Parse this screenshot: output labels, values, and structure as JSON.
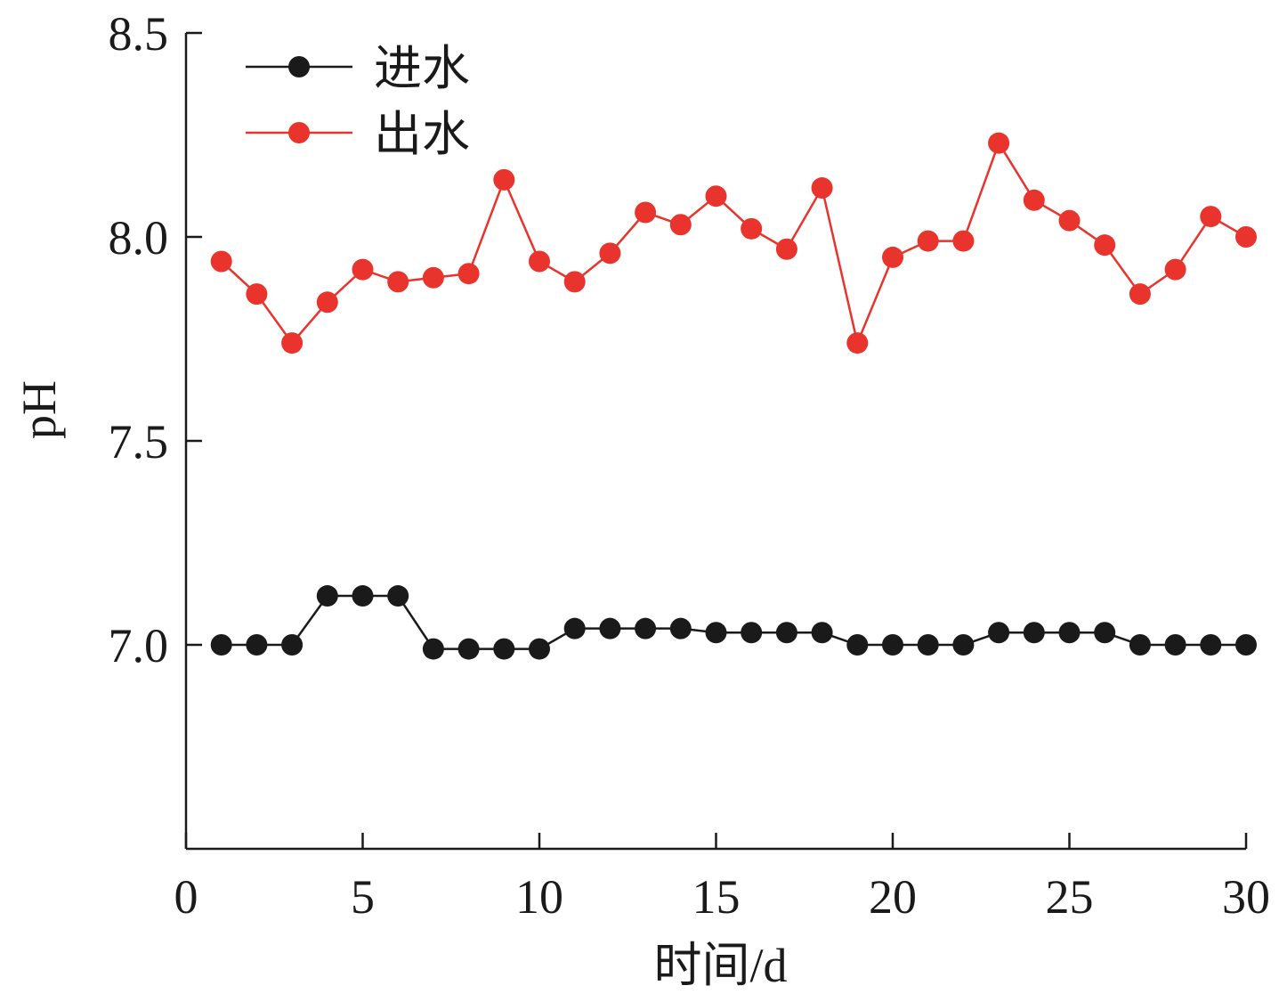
{
  "chart_data": {
    "type": "line",
    "xlabel": "时间/d",
    "ylabel": "pH",
    "xlim": [
      0,
      30
    ],
    "ylim": [
      6.5,
      8.5
    ],
    "x_ticks": [
      0,
      5,
      10,
      15,
      20,
      25,
      30
    ],
    "x_tick_labels": [
      "0",
      "5",
      "10",
      "15",
      "20",
      "25",
      "30"
    ],
    "y_ticks": [
      7.0,
      7.5,
      8.0,
      8.5
    ],
    "y_tick_labels": [
      "7.0",
      "7.5",
      "8.0",
      "8.5"
    ],
    "grid": false,
    "legend_position": "top-left",
    "x": [
      1,
      2,
      3,
      4,
      5,
      6,
      7,
      8,
      9,
      10,
      11,
      12,
      13,
      14,
      15,
      16,
      17,
      18,
      19,
      20,
      21,
      22,
      23,
      24,
      25,
      26,
      27,
      28,
      29,
      30
    ],
    "series": [
      {
        "name": "进水",
        "color": "#1a1a1a",
        "marker": "circle",
        "values": [
          7.0,
          7.0,
          7.0,
          7.12,
          7.12,
          7.12,
          6.99,
          6.99,
          6.99,
          6.99,
          7.04,
          7.04,
          7.04,
          7.04,
          7.03,
          7.03,
          7.03,
          7.03,
          7.0,
          7.0,
          7.0,
          7.0,
          7.03,
          7.03,
          7.03,
          7.03,
          7.0,
          7.0,
          7.0,
          7.0
        ]
      },
      {
        "name": "出水",
        "color": "#e8342c",
        "marker": "circle",
        "values": [
          7.94,
          7.86,
          7.74,
          7.84,
          7.92,
          7.89,
          7.9,
          7.91,
          8.14,
          7.94,
          7.89,
          7.96,
          8.06,
          8.03,
          8.1,
          8.02,
          7.97,
          8.12,
          7.74,
          7.95,
          7.99,
          7.99,
          8.23,
          8.09,
          8.04,
          7.98,
          7.86,
          7.92,
          8.05,
          8.0
        ]
      }
    ]
  }
}
